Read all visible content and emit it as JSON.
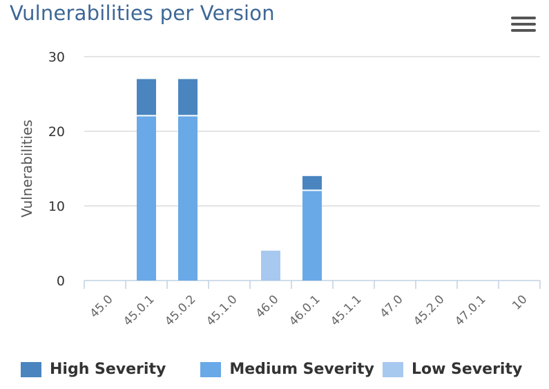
{
  "chart_data": {
    "type": "bar",
    "stacked": true,
    "title": "Vulnerabilities per Version",
    "ylabel": "Vulnerabilities",
    "xlabel": "",
    "categories": [
      "45.0",
      "45.0.1",
      "45.0.2",
      "45.1.0",
      "46.0",
      "46.0.1",
      "45.1.1",
      "47.0",
      "45.2.0",
      "47.0.1",
      "10"
    ],
    "ylim": [
      0,
      30
    ],
    "yticks": [
      0,
      10,
      20,
      30
    ],
    "grid": true,
    "legend_position": "bottom",
    "series": [
      {
        "name": "High Severity",
        "color": "#4a85bf",
        "values": [
          0,
          5,
          5,
          0,
          0,
          2,
          0,
          0,
          0,
          0,
          0
        ]
      },
      {
        "name": "Medium Severity",
        "color": "#69a9e8",
        "values": [
          0,
          22,
          22,
          0,
          0,
          12,
          0,
          0,
          0,
          0,
          0
        ]
      },
      {
        "name": "Low Severity",
        "color": "#a7c8ef",
        "values": [
          0,
          0,
          0,
          0,
          4,
          0,
          0,
          0,
          0,
          0,
          0
        ]
      }
    ]
  },
  "menu_icon": "hamburger-menu-icon"
}
